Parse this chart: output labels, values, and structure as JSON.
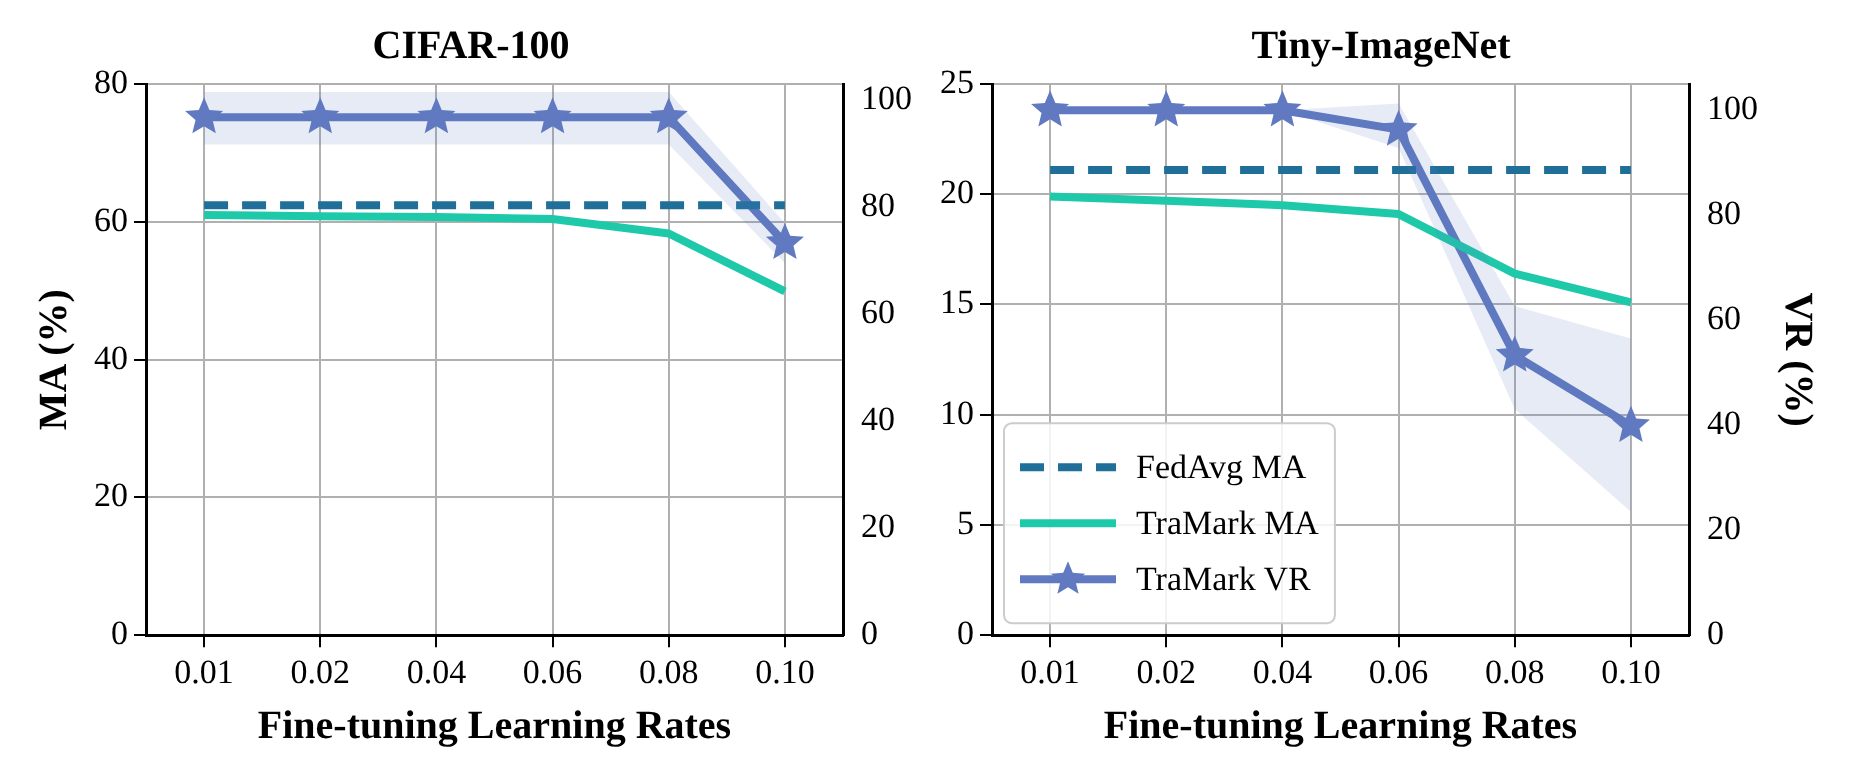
{
  "chart_data": [
    {
      "type": "line",
      "title": "CIFAR-100",
      "xlabel": "Fine-tuning Learning Rates",
      "ylabel": "MA (%)",
      "categories": [
        "0.01",
        "0.02",
        "0.04",
        "0.06",
        "0.08",
        "0.10"
      ],
      "ylim": [
        0,
        80
      ],
      "yticks": [
        0,
        20,
        40,
        60,
        80
      ],
      "y2lim": [
        0,
        103
      ],
      "y2ticks": [
        0,
        20,
        40,
        60,
        80,
        100
      ],
      "grid": true,
      "legend": false,
      "series": [
        {
          "color": "#1f6f99",
          "line_style": "dashed",
          "values": [
            62.4,
            62.4,
            62.4,
            62.4,
            62.4,
            62.4
          ]
        },
        {
          "color": "#1dc9a9",
          "values": [
            61.0,
            60.8,
            60.7,
            60.4,
            58.3,
            49.9
          ]
        },
        {
          "color": "#6079c0",
          "axis": "y2",
          "marker": "star",
          "values": [
            96.8,
            96.8,
            96.8,
            96.8,
            96.8,
            73.3
          ],
          "lower": [
            91.7,
            91.7,
            91.7,
            91.7,
            91.7,
            69.5
          ],
          "upper": [
            101.5,
            101.5,
            101.5,
            101.5,
            101.5,
            77.0
          ]
        }
      ]
    },
    {
      "type": "line",
      "title": "Tiny-ImageNet",
      "xlabel": "Fine-tuning Learning Rates",
      "y2label": "VR (%)",
      "categories": [
        "0.01",
        "0.02",
        "0.04",
        "0.06",
        "0.08",
        "0.10"
      ],
      "ylim": [
        0,
        25
      ],
      "yticks": [
        0,
        5,
        10,
        15,
        20,
        25
      ],
      "y2lim": [
        0,
        105
      ],
      "y2ticks": [
        0,
        20,
        40,
        60,
        80,
        100
      ],
      "grid": true,
      "legend": "bottom left",
      "series": [
        {
          "name": "FedAvg MA",
          "color": "#1f6f99",
          "line_style": "dashed",
          "values": [
            21.1,
            21.1,
            21.1,
            21.1,
            21.1,
            21.1
          ]
        },
        {
          "name": "TraMark MA",
          "color": "#1dc9a9",
          "values": [
            19.9,
            19.7,
            19.5,
            19.1,
            16.4,
            15.1
          ]
        },
        {
          "name": "TraMark VR",
          "color": "#6079c0",
          "axis": "y2",
          "marker": "star",
          "values": [
            100,
            100,
            100,
            96.3,
            53.3,
            39.9
          ],
          "lower": [
            100,
            100,
            100,
            92.8,
            43.1,
            23.5
          ],
          "upper": [
            100,
            100,
            100,
            101.3,
            62.7,
            56.5
          ]
        }
      ]
    }
  ]
}
